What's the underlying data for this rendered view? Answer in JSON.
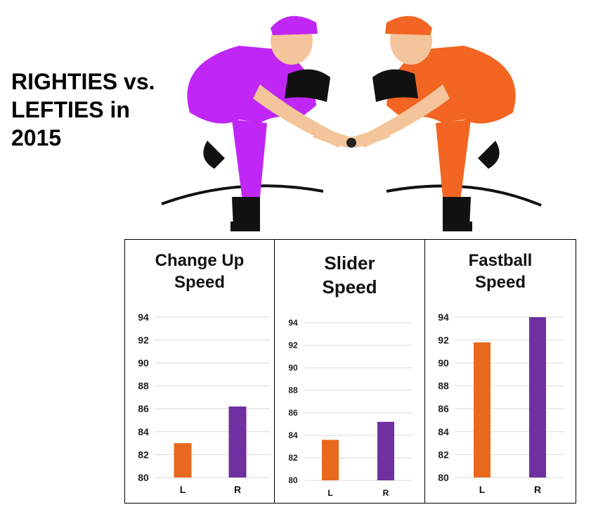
{
  "headline": {
    "line1": "RIGHTIES vs.",
    "line2": "LEFTIES in",
    "line3": "2015"
  },
  "colors": {
    "lefty": "#e8691e",
    "righty": "#7030a0",
    "right_pitcher_uniform": "#c026f5",
    "left_pitcher_uniform": "#f26522",
    "gridline": "#d9d9d9"
  },
  "chart_data": [
    {
      "type": "bar",
      "title_lines": [
        "Change Up",
        "Speed"
      ],
      "categories": [
        "L",
        "R"
      ],
      "values": [
        83.0,
        86.2
      ],
      "yticks": [
        80,
        82,
        84,
        86,
        88,
        90,
        92,
        94
      ],
      "ylim": [
        80,
        94
      ],
      "grid": true,
      "bar_colors": [
        "#e8691e",
        "#7030a0"
      ]
    },
    {
      "type": "bar",
      "title_lines": [
        "Slider",
        "Speed"
      ],
      "categories": [
        "L",
        "R"
      ],
      "values": [
        83.6,
        85.2
      ],
      "yticks": [
        80,
        82,
        84,
        86,
        88,
        90,
        92,
        94
      ],
      "ylim": [
        80,
        94
      ],
      "grid": true,
      "bar_colors": [
        "#e8691e",
        "#7030a0"
      ]
    },
    {
      "type": "bar",
      "title_lines": [
        "Fastball",
        "Speed"
      ],
      "categories": [
        "L",
        "R"
      ],
      "values": [
        91.8,
        94.0
      ],
      "yticks": [
        80,
        82,
        84,
        86,
        88,
        90,
        92,
        94
      ],
      "ylim": [
        80,
        94
      ],
      "grid": true,
      "bar_colors": [
        "#e8691e",
        "#7030a0"
      ]
    }
  ]
}
